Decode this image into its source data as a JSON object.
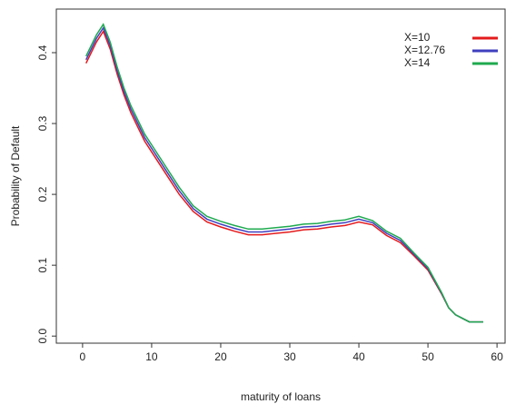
{
  "chart_data": {
    "type": "line",
    "xlabel": "maturity of loans",
    "ylabel": "Probability of Default",
    "x": [
      0.5,
      1,
      2,
      3,
      4,
      5,
      6,
      7,
      8,
      9,
      10,
      12,
      14,
      16,
      18,
      20,
      22,
      24,
      26,
      28,
      30,
      32,
      34,
      36,
      38,
      40,
      42,
      44,
      46,
      48,
      50,
      52,
      53,
      54,
      56,
      58
    ],
    "series": [
      {
        "name": "X=10",
        "color": "#e41a1c",
        "values": [
          0.385,
          0.395,
          0.415,
          0.43,
          0.405,
          0.37,
          0.34,
          0.315,
          0.295,
          0.275,
          0.26,
          0.23,
          0.2,
          0.176,
          0.161,
          0.154,
          0.148,
          0.143,
          0.143,
          0.145,
          0.147,
          0.15,
          0.151,
          0.154,
          0.156,
          0.161,
          0.157,
          0.142,
          0.132,
          0.113,
          0.093,
          0.059,
          0.04,
          0.03,
          0.02,
          0.02
        ]
      },
      {
        "name": "X=12.76",
        "color": "#3f3fbf",
        "values": [
          0.39,
          0.4,
          0.42,
          0.435,
          0.41,
          0.375,
          0.345,
          0.32,
          0.3,
          0.28,
          0.265,
          0.235,
          0.205,
          0.18,
          0.165,
          0.158,
          0.152,
          0.147,
          0.147,
          0.149,
          0.151,
          0.154,
          0.155,
          0.158,
          0.16,
          0.165,
          0.16,
          0.145,
          0.135,
          0.115,
          0.095,
          0.06,
          0.04,
          0.03,
          0.02,
          0.02
        ]
      },
      {
        "name": "X=14",
        "color": "#1faa4f",
        "values": [
          0.395,
          0.405,
          0.425,
          0.44,
          0.415,
          0.38,
          0.35,
          0.325,
          0.305,
          0.285,
          0.27,
          0.24,
          0.21,
          0.184,
          0.169,
          0.162,
          0.156,
          0.151,
          0.151,
          0.153,
          0.155,
          0.158,
          0.159,
          0.162,
          0.164,
          0.169,
          0.163,
          0.148,
          0.138,
          0.117,
          0.097,
          0.061,
          0.04,
          0.03,
          0.02,
          0.02
        ]
      }
    ],
    "xlim": [
      -3.8,
      61.3
    ],
    "ylim": [
      -0.01,
      0.4615
    ],
    "xticks": [
      0,
      10,
      20,
      30,
      40,
      50,
      60
    ],
    "yticks": [
      {
        "value": 0,
        "label": "0.0"
      },
      0.1,
      0.2,
      0.3,
      0.4
    ],
    "legend": "top-right",
    "grid": false
  }
}
